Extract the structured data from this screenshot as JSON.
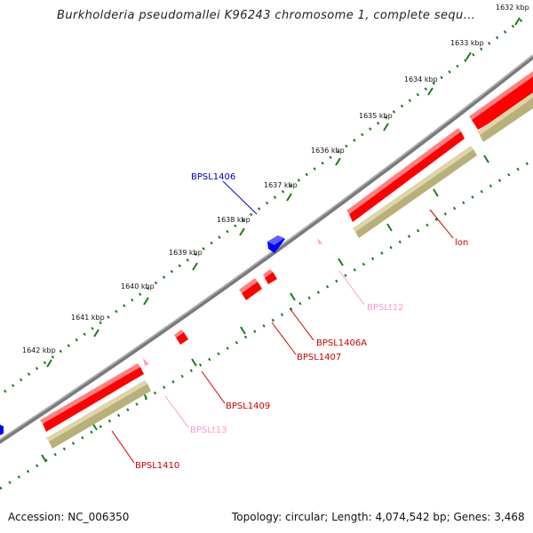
{
  "title": "Burkholderia pseudomallei K96243 chromosome 1, complete sequ...",
  "footer": {
    "accession": "Accession: NC_006350",
    "summary": "Topology: circular; Length: 4,074,542 bp; Genes: 3,468"
  },
  "scale_labels": [
    "1632 kbp",
    "1633 kbp",
    "1634 kbp",
    "1635 kbp",
    "1636 kbp",
    "1637 kbp",
    "1638 kbp",
    "1639 kbp",
    "1640 kbp",
    "1641 kbp",
    "1642 kbp"
  ],
  "gene_labels": [
    "BPSL1406",
    "lon",
    "BPSLt12",
    "BPSL1406A",
    "BPSL1407",
    "BPSL1409",
    "BPSLt13",
    "BPSL1410"
  ],
  "colors": {
    "backbone": "#808080",
    "gene_forward": "#0000ff",
    "gene_reverse": "#ff0000",
    "cds_track": "#b8b078",
    "trna": "#ffa0c8",
    "scale_ticks": "#1a7a1a",
    "label_blue": "#0000cc",
    "label_red": "#cc0000",
    "label_pink": "#ff99cc"
  }
}
